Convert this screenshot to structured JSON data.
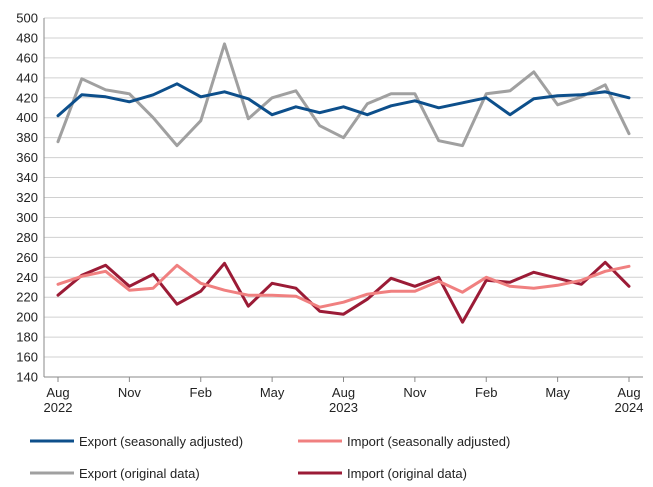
{
  "chart_data": {
    "type": "line",
    "title": "",
    "xlabel": "",
    "ylabel": "",
    "ylim": [
      140,
      500
    ],
    "yticks": [
      140,
      160,
      180,
      200,
      220,
      240,
      260,
      280,
      300,
      320,
      340,
      360,
      380,
      400,
      420,
      440,
      460,
      480,
      500
    ],
    "grid": true,
    "legend_position": "bottom",
    "x": [
      "2022-08",
      "2022-09",
      "2022-10",
      "2022-11",
      "2022-12",
      "2023-01",
      "2023-02",
      "2023-03",
      "2023-04",
      "2023-05",
      "2023-06",
      "2023-07",
      "2023-08",
      "2023-09",
      "2023-10",
      "2023-11",
      "2023-12",
      "2024-01",
      "2024-02",
      "2024-03",
      "2024-04",
      "2024-05",
      "2024-06",
      "2024-07",
      "2024-08"
    ],
    "x_tick_labels": [
      {
        "x": "2022-08",
        "line1": "Aug",
        "line2": "2022"
      },
      {
        "x": "2022-11",
        "line1": "Nov",
        "line2": ""
      },
      {
        "x": "2023-02",
        "line1": "Feb",
        "line2": ""
      },
      {
        "x": "2023-05",
        "line1": "May",
        "line2": ""
      },
      {
        "x": "2023-08",
        "line1": "Aug",
        "line2": "2023"
      },
      {
        "x": "2023-11",
        "line1": "Nov",
        "line2": ""
      },
      {
        "x": "2024-02",
        "line1": "Feb",
        "line2": ""
      },
      {
        "x": "2024-05",
        "line1": "May",
        "line2": ""
      },
      {
        "x": "2024-08",
        "line1": "Aug",
        "line2": "2024"
      }
    ],
    "series": [
      {
        "name": "Export (seasonally adjusted)",
        "color": "#0d4f8b",
        "values": [
          402,
          423,
          421,
          416,
          423,
          434,
          421,
          426,
          419,
          403,
          411,
          405,
          411,
          403,
          412,
          417,
          410,
          415,
          420,
          403,
          419,
          422,
          423,
          426,
          420
        ]
      },
      {
        "name": "Export (original data)",
        "color": "#a0a0a0",
        "values": [
          376,
          439,
          428,
          424,
          400,
          372,
          397,
          474,
          399,
          420,
          427,
          392,
          380,
          414,
          424,
          424,
          377,
          372,
          424,
          427,
          446,
          413,
          421,
          433,
          384
        ]
      },
      {
        "name": "Import (seasonally adjusted)",
        "color": "#f08080",
        "values": [
          233,
          241,
          246,
          227,
          229,
          252,
          234,
          227,
          222,
          222,
          221,
          210,
          215,
          223,
          226,
          226,
          236,
          225,
          240,
          231,
          229,
          232,
          237,
          246,
          251
        ]
      },
      {
        "name": "Import (original data)",
        "color": "#9b1b36",
        "values": [
          222,
          242,
          252,
          231,
          243,
          213,
          226,
          254,
          211,
          234,
          229,
          206,
          203,
          218,
          239,
          231,
          240,
          195,
          237,
          235,
          245,
          239,
          233,
          255,
          231
        ]
      }
    ]
  }
}
